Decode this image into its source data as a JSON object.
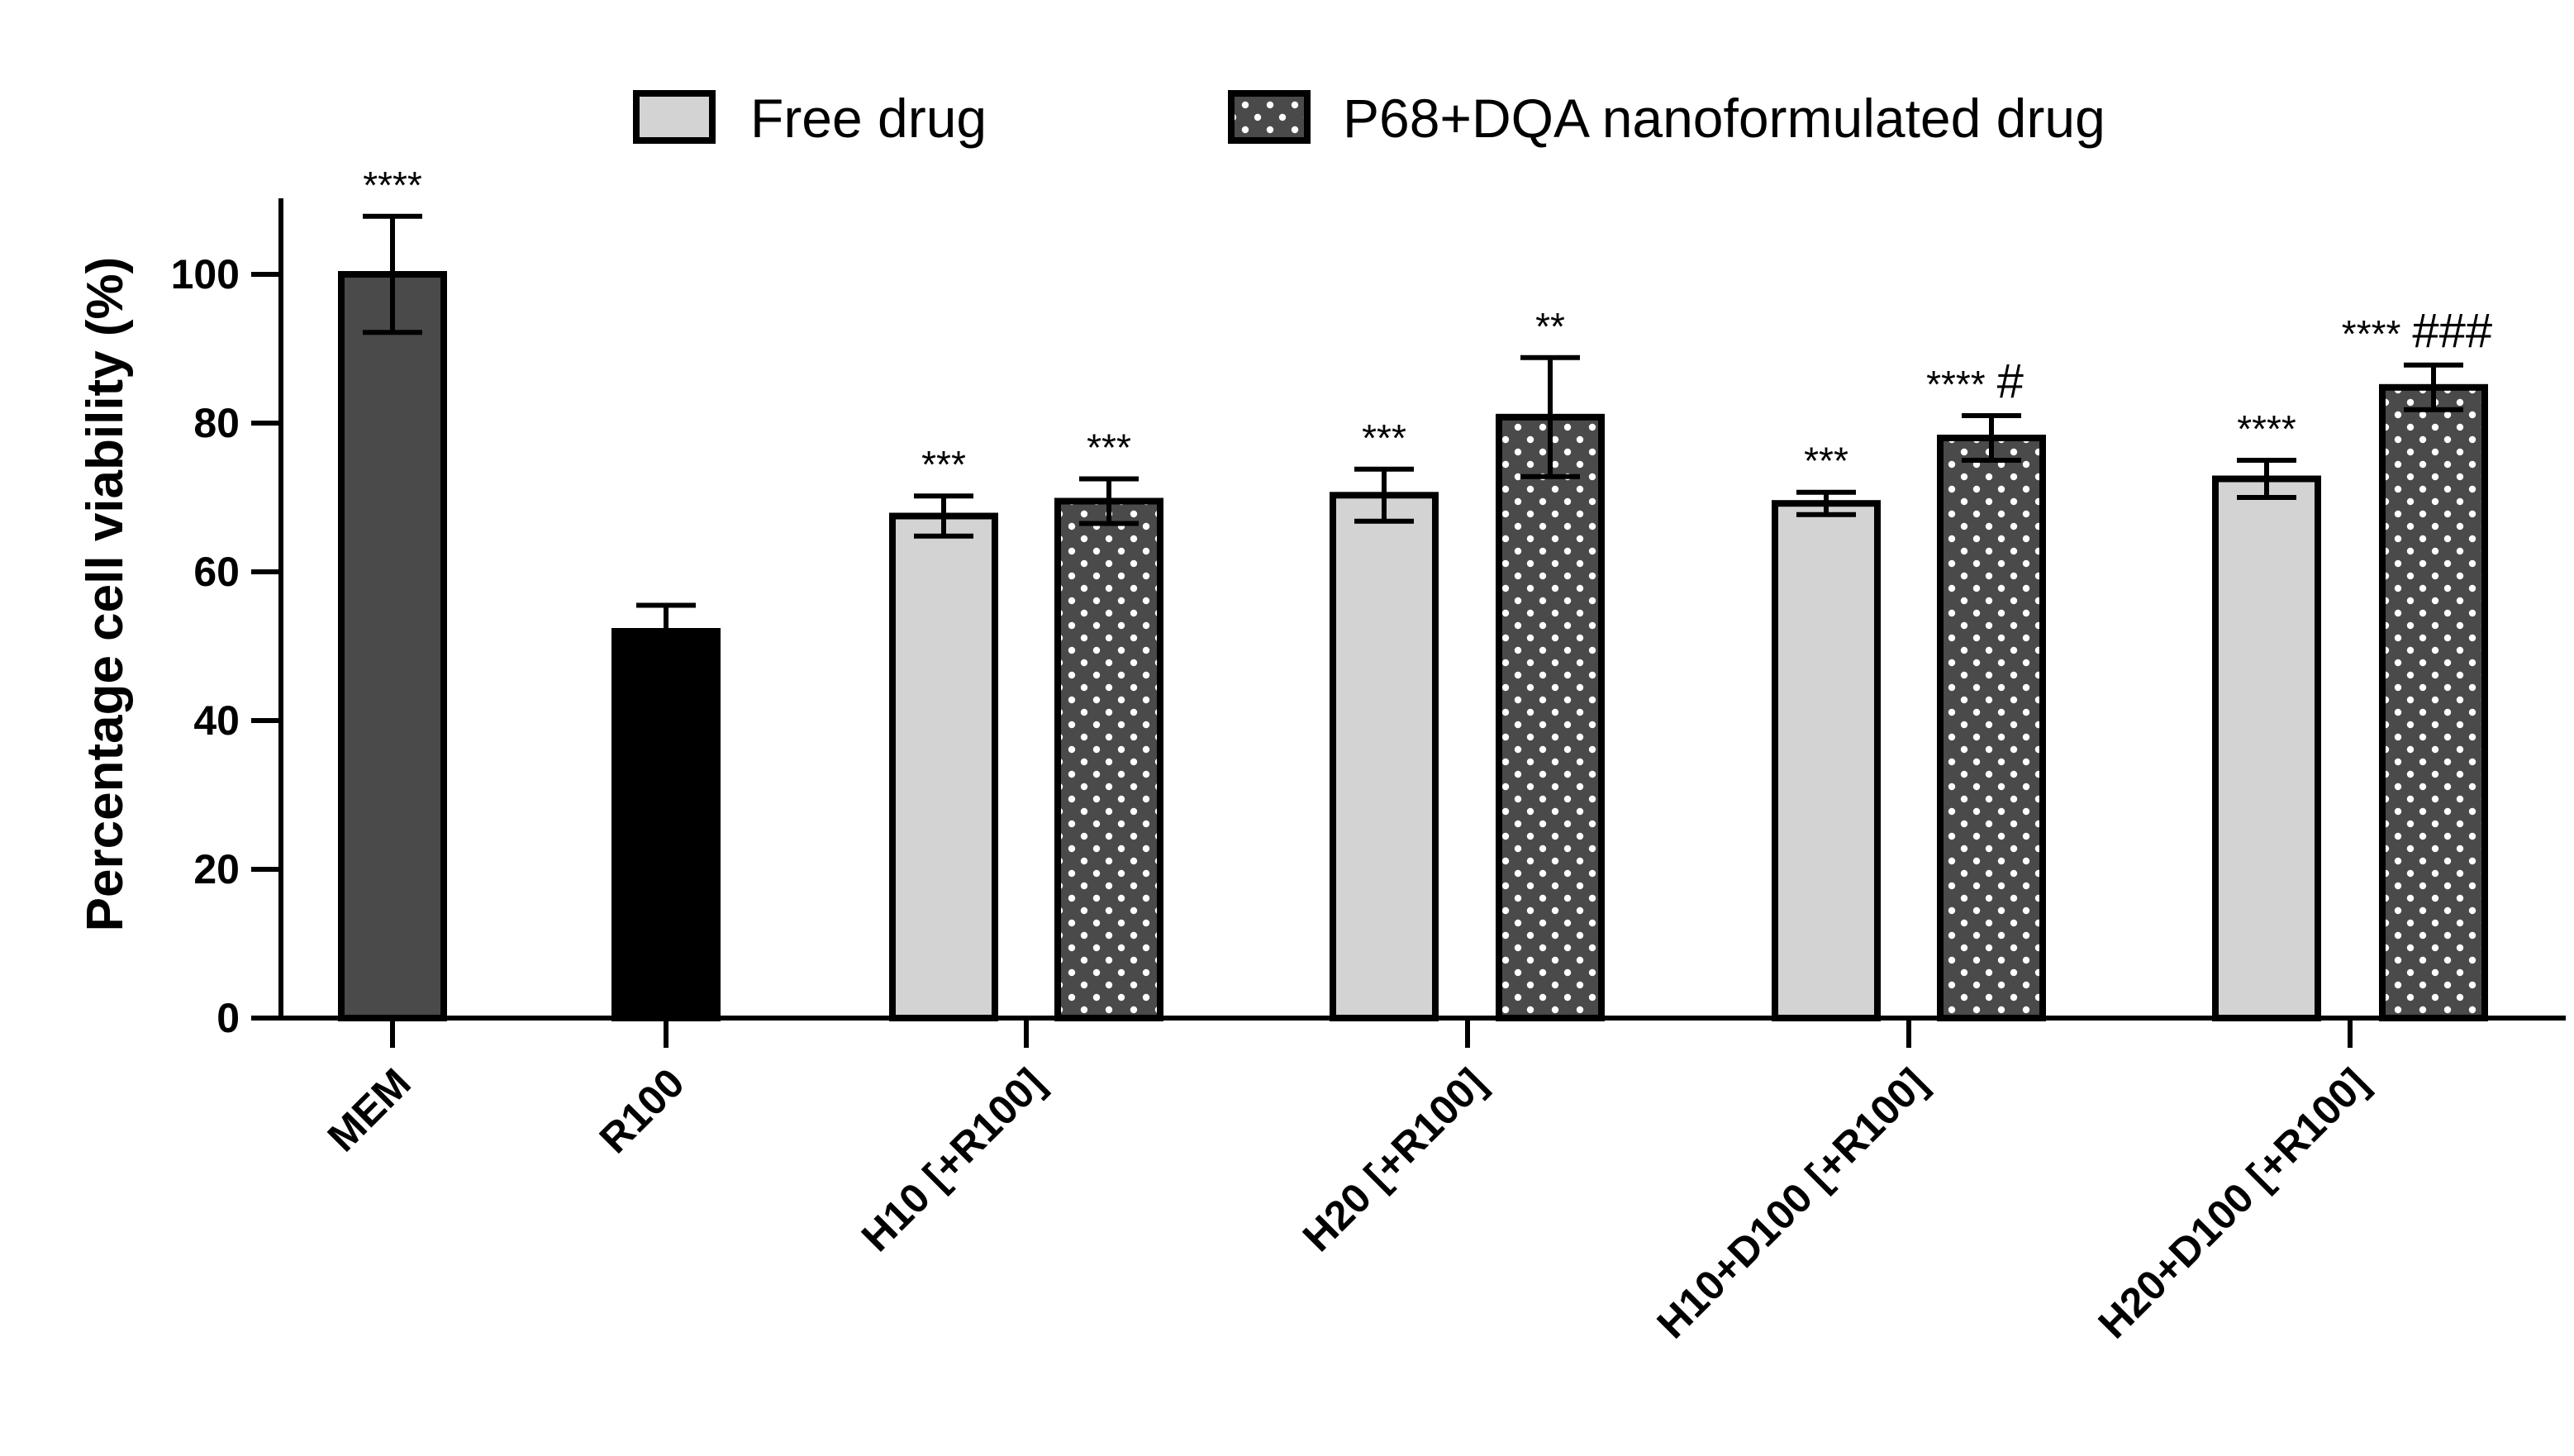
{
  "chart_data": {
    "type": "bar",
    "title": "",
    "xlabel": "",
    "ylabel": "Percentage cell viability (%)",
    "ylim": [
      0,
      110
    ],
    "yticks": [
      0,
      20,
      40,
      60,
      80,
      100
    ],
    "grid": false,
    "legend_position": "top",
    "categories": [
      "MEM",
      "R100",
      "H10 [+R100]",
      "H20 [+R100]",
      "H10+D100 [+R100]",
      "H20+D100 [+R100]"
    ],
    "legend": [
      {
        "name": "Free drug",
        "fill": "#d3d3d3",
        "pattern": "solid"
      },
      {
        "name": "P68+DQA nanoformulated drug",
        "fill": "#4a4a4a",
        "pattern": "dots"
      }
    ],
    "bars": [
      {
        "category": "MEM",
        "style": "control-dark",
        "value": 100,
        "error": 7.8,
        "label": "****"
      },
      {
        "category": "R100",
        "style": "control-black",
        "value": 52,
        "error": 3.5,
        "label": ""
      },
      {
        "category": "H10 [+R100]",
        "style": "free",
        "value": 67.5,
        "error": 2.7,
        "label": "***"
      },
      {
        "category": "H10 [+R100]",
        "style": "nano",
        "value": 69.5,
        "error": 3.0,
        "label": "***"
      },
      {
        "category": "H20 [+R100]",
        "style": "free",
        "value": 70.3,
        "error": 3.5,
        "label": "***"
      },
      {
        "category": "H20 [+R100]",
        "style": "nano",
        "value": 80.8,
        "error": 8.0,
        "label": "**"
      },
      {
        "category": "H10+D100 [+R100]",
        "style": "free",
        "value": 69.2,
        "error": 1.5,
        "label": "***"
      },
      {
        "category": "H10+D100 [+R100]",
        "style": "nano",
        "value": 78,
        "error": 3.0,
        "label": "**** #"
      },
      {
        "category": "H20+D100 [+R100]",
        "style": "free",
        "value": 72.5,
        "error": 2.5,
        "label": "****"
      },
      {
        "category": "H20+D100 [+R100]",
        "style": "nano",
        "value": 84.8,
        "error": 3.0,
        "label": "**** ###"
      }
    ],
    "colors": {
      "control_dark": "#4a4a4a",
      "control_black": "#000000",
      "free": "#d3d3d3",
      "nano": "#4a4a4a",
      "nano_dots": "#ffffff"
    }
  }
}
